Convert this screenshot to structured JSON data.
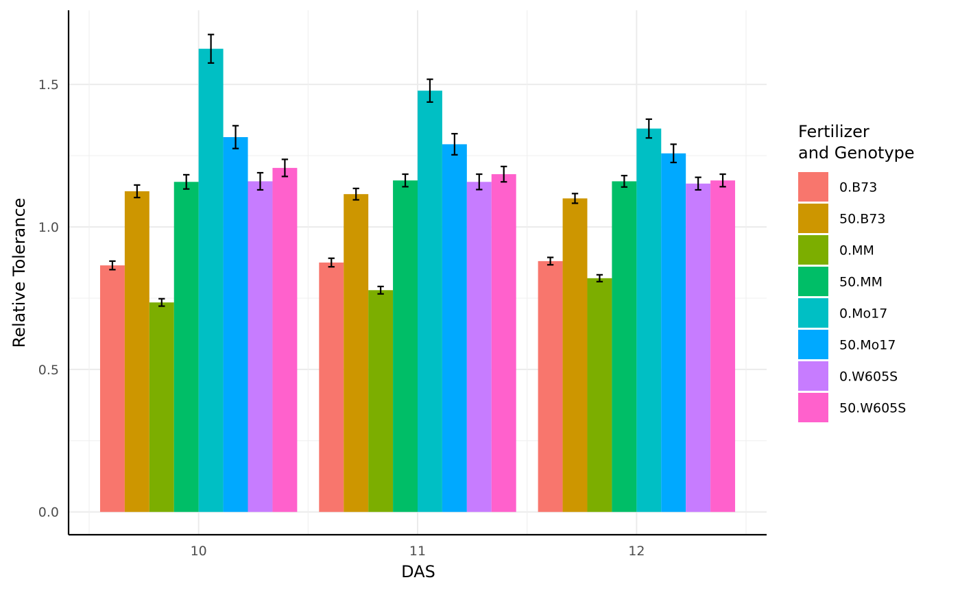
{
  "chart_data": {
    "type": "bar",
    "xlabel": "DAS",
    "ylabel": "Relative Tolerance",
    "ylim": [
      -0.08,
      1.76
    ],
    "y_ticks": [
      "0.0",
      "0.5",
      "1.0",
      "1.5"
    ],
    "grid": true,
    "legend": {
      "title_line1": "Fertilizer",
      "title_line2": "and Genotype",
      "position": "right"
    },
    "categories": [
      "10",
      "11",
      "12"
    ],
    "series": [
      {
        "name": "0.B73",
        "color": "#F8766D",
        "values": [
          0.865,
          0.875,
          0.88
        ],
        "errors": [
          0.015,
          0.015,
          0.013
        ]
      },
      {
        "name": "50.B73",
        "color": "#CD9600",
        "values": [
          1.125,
          1.115,
          1.1
        ],
        "errors": [
          0.022,
          0.02,
          0.017
        ]
      },
      {
        "name": "0.MM",
        "color": "#7CAE00",
        "values": [
          0.735,
          0.778,
          0.82
        ],
        "errors": [
          0.013,
          0.013,
          0.012
        ]
      },
      {
        "name": "50.MM",
        "color": "#00BE67",
        "values": [
          1.158,
          1.163,
          1.16
        ],
        "errors": [
          0.025,
          0.022,
          0.02
        ]
      },
      {
        "name": "0.Mo17",
        "color": "#00BFC4",
        "values": [
          1.625,
          1.478,
          1.345
        ],
        "errors": [
          0.05,
          0.04,
          0.033
        ]
      },
      {
        "name": "50.Mo17",
        "color": "#00A9FF",
        "values": [
          1.315,
          1.29,
          1.258
        ],
        "errors": [
          0.04,
          0.037,
          0.032
        ]
      },
      {
        "name": "0.W605S",
        "color": "#C77CFF",
        "values": [
          1.16,
          1.158,
          1.152
        ],
        "errors": [
          0.03,
          0.027,
          0.022
        ]
      },
      {
        "name": "50.W605S",
        "color": "#FF61CC",
        "values": [
          1.207,
          1.185,
          1.163
        ],
        "errors": [
          0.03,
          0.027,
          0.022
        ]
      }
    ]
  }
}
